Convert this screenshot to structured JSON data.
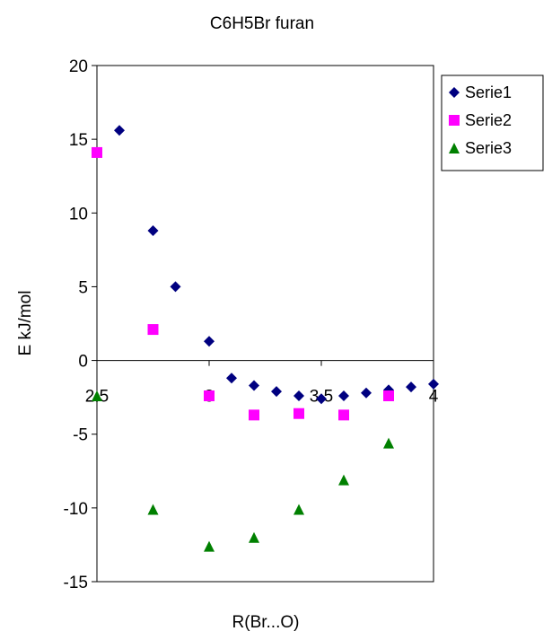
{
  "chart_data": {
    "type": "scatter",
    "title": "C6H5Br furan",
    "xlabel": "R(Br...O)",
    "ylabel": "E kJ/mol",
    "xlim": [
      2.5,
      4
    ],
    "ylim": [
      -15,
      20
    ],
    "x_ticks": [
      "2.5",
      "3",
      "3.5",
      "4"
    ],
    "y_ticks": [
      "20",
      "15",
      "10",
      "5",
      "0",
      "-5",
      "-10",
      "-15"
    ],
    "grid": false,
    "legend_position": "right",
    "series": [
      {
        "name": "Serie1",
        "marker": "diamond",
        "color": "#000080",
        "points": [
          {
            "x": 2.6,
            "y": 15.6
          },
          {
            "x": 2.75,
            "y": 8.8
          },
          {
            "x": 2.85,
            "y": 5.0
          },
          {
            "x": 3.0,
            "y": 1.3
          },
          {
            "x": 3.1,
            "y": -1.2
          },
          {
            "x": 3.2,
            "y": -1.7
          },
          {
            "x": 3.3,
            "y": -2.1
          },
          {
            "x": 3.4,
            "y": -2.4
          },
          {
            "x": 3.5,
            "y": -2.6
          },
          {
            "x": 3.6,
            "y": -2.4
          },
          {
            "x": 3.7,
            "y": -2.2
          },
          {
            "x": 3.8,
            "y": -2.0
          },
          {
            "x": 3.9,
            "y": -1.8
          },
          {
            "x": 4.0,
            "y": -1.6
          }
        ]
      },
      {
        "name": "Serie2",
        "marker": "square",
        "color": "#ff00ff",
        "points": [
          {
            "x": 2.5,
            "y": 14.1
          },
          {
            "x": 2.75,
            "y": 2.1
          },
          {
            "x": 3.0,
            "y": -2.4
          },
          {
            "x": 3.2,
            "y": -3.7
          },
          {
            "x": 3.4,
            "y": -3.6
          },
          {
            "x": 3.6,
            "y": -3.7
          },
          {
            "x": 3.8,
            "y": -2.4
          }
        ]
      },
      {
        "name": "Serie3",
        "marker": "triangle",
        "color": "#008000",
        "points": [
          {
            "x": 2.5,
            "y": -2.4
          },
          {
            "x": 2.75,
            "y": -10.1
          },
          {
            "x": 3.0,
            "y": -12.6
          },
          {
            "x": 3.2,
            "y": -12.0
          },
          {
            "x": 3.4,
            "y": -10.1
          },
          {
            "x": 3.6,
            "y": -8.1
          },
          {
            "x": 3.8,
            "y": -5.6
          }
        ]
      }
    ]
  }
}
